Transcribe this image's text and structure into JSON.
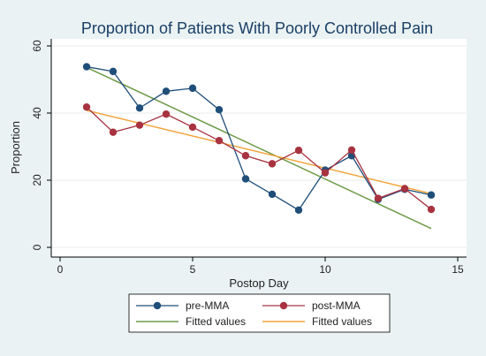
{
  "chart_data": {
    "type": "line",
    "title": "Proportion of Patients With Poorly Controlled Pain",
    "xlabel": "Postop Day",
    "ylabel": "Proportion",
    "xlim": [
      0,
      15
    ],
    "ylim": [
      0,
      60
    ],
    "x_ticks": [
      0,
      5,
      10,
      15
    ],
    "y_ticks": [
      0,
      20,
      40,
      60
    ],
    "grid": "horizontal",
    "legend_position": "bottom",
    "series": [
      {
        "name": "pre-MMA",
        "kind": "line-marker",
        "color": "#1f4e79",
        "x": [
          1,
          2,
          3,
          4,
          5,
          6,
          7,
          8,
          9,
          10,
          11,
          12,
          13,
          14
        ],
        "y": [
          53.8,
          52.4,
          41.5,
          46.5,
          47.4,
          41.0,
          20.4,
          15.8,
          11.1,
          23.0,
          27.3,
          14.3,
          17.3,
          15.6
        ]
      },
      {
        "name": "post-MMA",
        "kind": "line-marker",
        "color": "#a83240",
        "x": [
          1,
          2,
          3,
          4,
          5,
          6,
          7,
          8,
          9,
          10,
          11,
          12,
          13,
          14
        ],
        "y": [
          41.8,
          34.3,
          36.4,
          39.7,
          35.8,
          31.8,
          27.3,
          24.9,
          28.9,
          22.2,
          29.0,
          14.6,
          17.5,
          11.3
        ]
      },
      {
        "name": "Fitted values",
        "kind": "fit",
        "color": "#6e9a48",
        "x": [
          1,
          14
        ],
        "y": [
          53.6,
          5.6
        ]
      },
      {
        "name": "Fitted values",
        "kind": "fit",
        "color": "#f2a43a",
        "x": [
          1,
          14
        ],
        "y": [
          40.8,
          16.0
        ]
      }
    ]
  }
}
